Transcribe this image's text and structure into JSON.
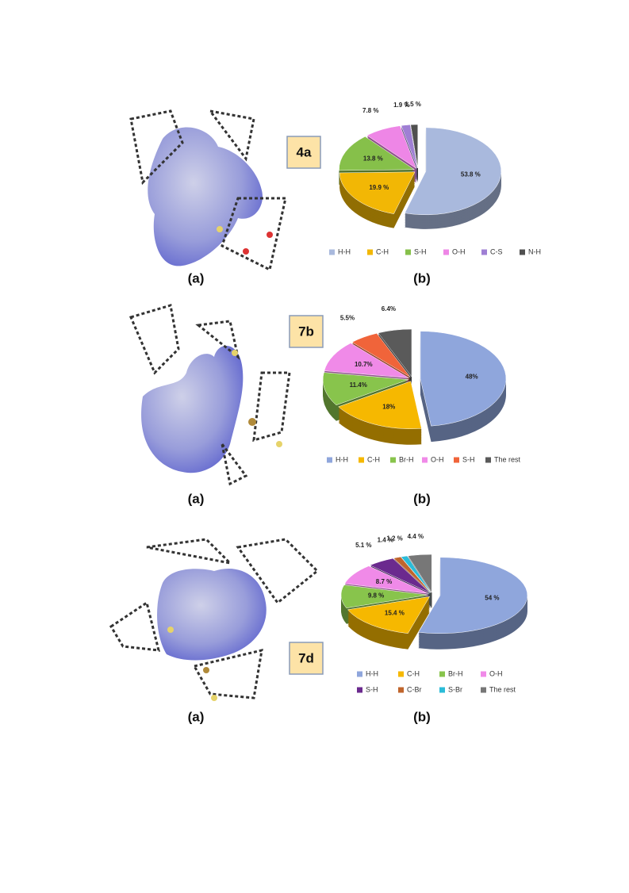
{
  "chart_data": [
    {
      "type": "pie",
      "label": "4a",
      "categories": [
        "H-H",
        "C-H",
        "S-H",
        "O-H",
        "C-S",
        "N-H"
      ],
      "values": [
        53.8,
        19.9,
        13.8,
        7.8,
        1.9,
        1.5
      ],
      "value_labels": [
        "53.8 %",
        "19.9 %",
        "13.8 %",
        "7.8 %",
        "1.9 %",
        "1.5 %"
      ],
      "colors": [
        "#a9b9dd",
        "#f2b705",
        "#86c04a",
        "#ee86e6",
        "#9f7fd4",
        "#505050"
      ]
    },
    {
      "type": "pie",
      "label": "7b",
      "categories": [
        "H-H",
        "C-H",
        "Br-H",
        "O-H",
        "S-H",
        "The rest"
      ],
      "values": [
        48,
        18,
        11.4,
        10.7,
        5.5,
        6.4
      ],
      "value_labels": [
        "48%",
        "18%",
        "11.4%",
        "10.7%",
        "5.5%",
        "6.4%"
      ],
      "colors": [
        "#8fa6dc",
        "#f6b800",
        "#88c44c",
        "#f08ae8",
        "#f0643a",
        "#5a5a5a"
      ]
    },
    {
      "type": "pie",
      "label": "7d",
      "categories": [
        "H-H",
        "C-H",
        "Br-H",
        "O-H",
        "S-H",
        "C-Br",
        "S-Br",
        "The rest"
      ],
      "values": [
        54,
        15.4,
        9.8,
        8.7,
        5.1,
        1.4,
        1.2,
        4.4
      ],
      "value_labels": [
        "54 %",
        "15.4 %",
        "9.8 %",
        "8.7 %",
        "5.1 %",
        "1.4 %",
        "1.2 %",
        "4.4 %"
      ],
      "colors": [
        "#8fa6dc",
        "#f6b800",
        "#88c44c",
        "#f08ae8",
        "#6b2a8e",
        "#c0652c",
        "#2bbcd8",
        "#777777"
      ]
    }
  ],
  "captions": {
    "left": "(a)",
    "right": "(b)"
  }
}
